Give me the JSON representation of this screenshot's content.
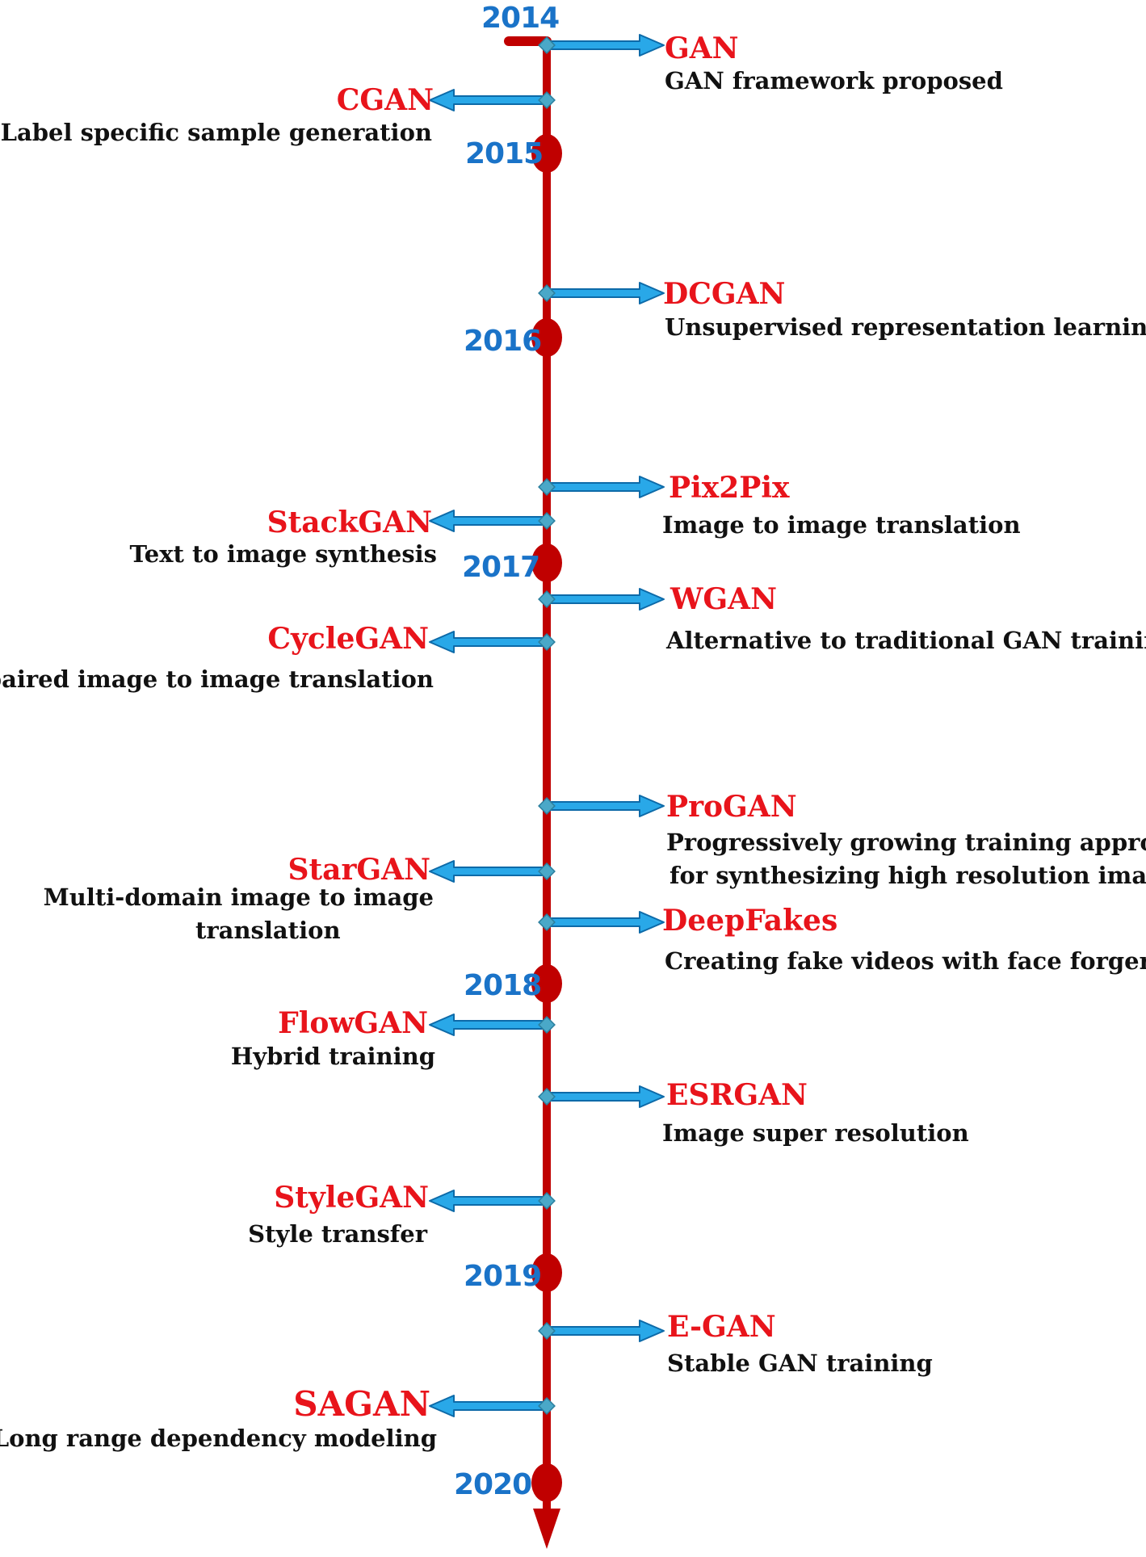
{
  "colors": {
    "axis": "#c00000",
    "year_text": "#1a73c8",
    "model_name": "#e8141b",
    "description": "#111111",
    "arrow_fill": "#29a8e8",
    "arrow_stroke": "#0d6aa8",
    "diamond": "#4aa8c8"
  },
  "years": [
    {
      "id": "2014",
      "label": "2014"
    },
    {
      "id": "2015",
      "label": "2015"
    },
    {
      "id": "2016",
      "label": "2016"
    },
    {
      "id": "2017",
      "label": "2017"
    },
    {
      "id": "2018",
      "label": "2018"
    },
    {
      "id": "2019",
      "label": "2019"
    },
    {
      "id": "2020",
      "label": "2020"
    }
  ],
  "events": [
    {
      "id": "gan",
      "name": "GAN",
      "side": "right",
      "lines": [
        "GAN framework proposed"
      ]
    },
    {
      "id": "cgan",
      "name": "CGAN",
      "side": "left",
      "lines": [
        "Label specific sample generation"
      ]
    },
    {
      "id": "dcgan",
      "name": "DCGAN",
      "side": "right",
      "lines": [
        "Unsupervised representation learning"
      ]
    },
    {
      "id": "pix2pix",
      "name": "Pix2Pix",
      "side": "right",
      "lines": [
        "Image to image translation"
      ]
    },
    {
      "id": "stackgan",
      "name": "StackGAN",
      "side": "left",
      "lines": [
        "Text to image synthesis"
      ]
    },
    {
      "id": "wgan",
      "name": "WGAN",
      "side": "right",
      "lines": [
        "Alternative to traditional GAN training"
      ]
    },
    {
      "id": "cyclegan",
      "name": "CycleGAN",
      "side": "left",
      "lines": [
        "Unpaired image to image translation"
      ]
    },
    {
      "id": "progan",
      "name": "ProGAN",
      "side": "right",
      "lines": [
        "Progressively growing training approach",
        "for synthesizing high resolution images"
      ]
    },
    {
      "id": "stargan",
      "name": "StarGAN",
      "side": "left",
      "lines": [
        "Multi-domain image to image",
        "translation"
      ]
    },
    {
      "id": "deepfakes",
      "name": "DeepFakes",
      "side": "right",
      "lines": [
        "Creating fake videos with face forgery"
      ]
    },
    {
      "id": "flowgan",
      "name": "FlowGAN",
      "side": "left",
      "lines": [
        "Hybrid training"
      ]
    },
    {
      "id": "esrgan",
      "name": "ESRGAN",
      "side": "right",
      "lines": [
        "Image super resolution"
      ]
    },
    {
      "id": "stylegan",
      "name": "StyleGAN",
      "side": "left",
      "lines": [
        "Style transfer"
      ]
    },
    {
      "id": "egan",
      "name": "E-GAN",
      "side": "right",
      "lines": [
        "Stable GAN training"
      ]
    },
    {
      "id": "sagan",
      "name": "SAGAN",
      "side": "left",
      "lines": [
        "Long range dependency modeling"
      ]
    }
  ]
}
